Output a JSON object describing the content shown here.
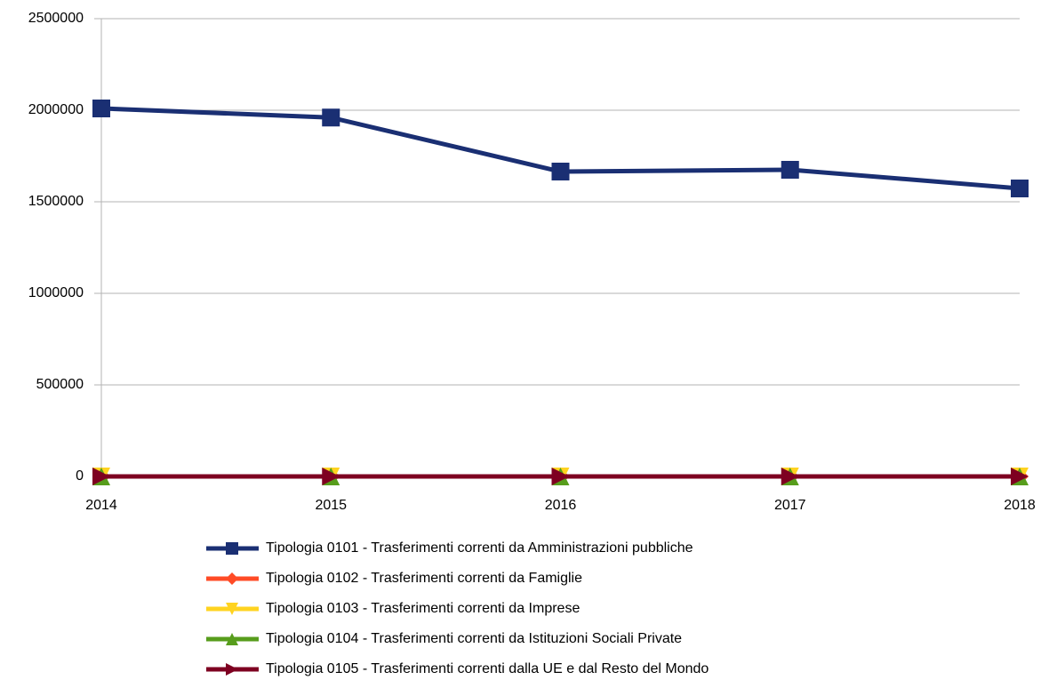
{
  "chart_data": {
    "type": "line",
    "categories": [
      "2014",
      "2015",
      "2016",
      "2017",
      "2018"
    ],
    "series": [
      {
        "name": "Tipologia 0101 - Trasferimenti correnti da Amministrazioni pubbliche",
        "color": "#1a2f73",
        "marker": "square",
        "values": [
          2010000,
          1960000,
          1665000,
          1675000,
          1573000
        ]
      },
      {
        "name": "Tipologia 0102 - Trasferimenti correnti da Famiglie",
        "color": "#ff4b26",
        "marker": "diamond",
        "values": [
          0,
          0,
          0,
          0,
          0
        ]
      },
      {
        "name": "Tipologia 0103 - Trasferimenti correnti da Imprese",
        "color": "#ffd320",
        "marker": "triangle-down",
        "values": [
          0,
          0,
          0,
          0,
          0
        ]
      },
      {
        "name": "Tipologia 0104 - Trasferimenti correnti da Istituzioni Sociali Private",
        "color": "#579d1c",
        "marker": "triangle-up",
        "values": [
          0,
          0,
          0,
          0,
          0
        ]
      },
      {
        "name": "Tipologia 0105 - Trasferimenti correnti dalla UE e dal Resto del Mondo",
        "color": "#7e0021",
        "marker": "triangle-right",
        "values": [
          0,
          0,
          0,
          0,
          0
        ]
      }
    ],
    "ylim": [
      0,
      2500000
    ],
    "yticks": [
      0,
      500000,
      1000000,
      1500000,
      2000000,
      2500000
    ],
    "grid": true,
    "legend": "bottom"
  }
}
